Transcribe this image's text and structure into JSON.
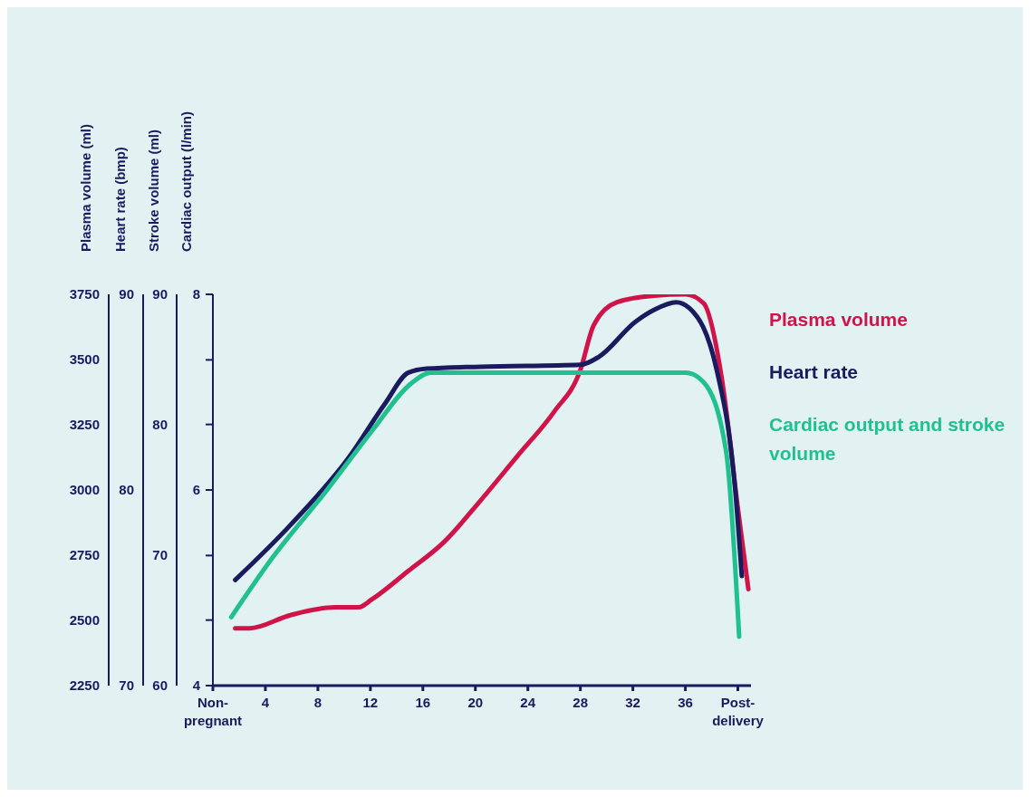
{
  "chart_data": {
    "type": "line",
    "ylabel": "Cardiac output (l/min)",
    "y2label": "Heart rate (bmp)",
    "y3label": "Plasma volume (ml)",
    "annotations": [
      "Stroke volume (ml)",
      "60",
      "70",
      "80",
      "90"
    ],
    "xlim": [
      0,
      41
    ],
    "xticks": [
      {
        "value": 0,
        "label": "Non-pregnant"
      },
      4,
      8,
      12,
      16,
      20,
      24,
      28,
      32,
      36,
      {
        "value": 40,
        "label": "Post-delivery"
      }
    ],
    "ylim": [
      4,
      8
    ],
    "yticks": [
      4,
      {
        "value": 4.67,
        "label": null
      },
      {
        "value": 5.33,
        "label": null
      },
      6,
      {
        "value": 6.67,
        "label": null
      },
      {
        "value": 7.33,
        "label": null
      },
      8
    ],
    "y2lim": [
      70,
      90
    ],
    "y2ticks": [
      70,
      80,
      90
    ],
    "y3lim": [
      2250,
      3750
    ],
    "y3ticks": [
      2250,
      2500,
      2750,
      3000,
      3250,
      3500,
      3750
    ],
    "legend": "right",
    "series": [
      {
        "name": "Plasma volume",
        "color": "#d0144a",
        "axis": "y3",
        "x": [
          1.7,
          2.8,
          5.9,
          9.3,
          11.1,
          12.1,
          14.9,
          17.6,
          20.4,
          23.2,
          26,
          28,
          29,
          30.8,
          33.6,
          36,
          37.4,
          38.8,
          40,
          40.8
        ],
        "values": [
          2470,
          2470,
          2520,
          2550,
          2550,
          2580,
          2690,
          2800,
          2960,
          3130,
          3300,
          3460,
          3630,
          3720,
          3745,
          3750,
          3715,
          3420,
          2930,
          2620
        ]
      },
      {
        "name": "Heart rate",
        "color": "#1a1a5e",
        "axis": "y2",
        "x": [
          1.7,
          5.9,
          10.4,
          13.1,
          14.9,
          16.3,
          20.4,
          28,
          29.4,
          32.2,
          33.6,
          35.3,
          36.3,
          38.4,
          39.8,
          40.3
        ],
        "values": [
          75.4,
          78.2,
          81.7,
          84.4,
          86,
          86.2,
          86.3,
          86.4,
          86.8,
          88.6,
          89.2,
          89.6,
          89.3,
          86.1,
          80,
          75.6
        ]
      },
      {
        "name": "Cardiac output and stroke volume",
        "color": "#20c090",
        "x": [
          1.4,
          4.5,
          8.7,
          12.1,
          15.2,
          16.6,
          25.3,
          36,
          37.4,
          39.1,
          40.1
        ],
        "values": [
          4.7,
          5.3,
          6.0,
          6.6,
          7.1,
          7.2,
          7.2,
          7.2,
          7.1,
          6.4,
          4.5
        ]
      }
    ]
  }
}
